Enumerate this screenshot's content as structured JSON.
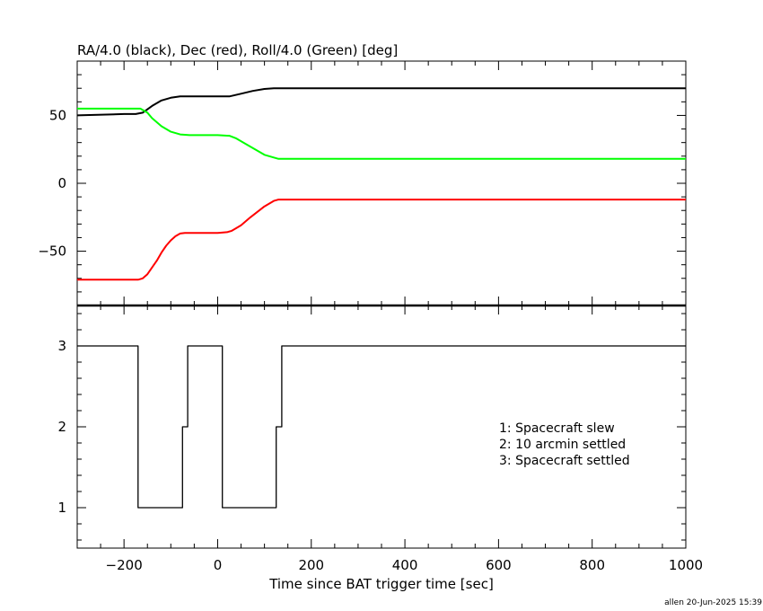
{
  "chart_data": [
    {
      "type": "line",
      "title": "RA/4.0 (black), Dec (red), Roll/4.0 (Green) [deg]",
      "xlim": [
        -300,
        1000
      ],
      "ylim": [
        -90,
        90
      ],
      "y_ticks": [
        50,
        0,
        -50
      ],
      "y_tick_labels": [
        "50",
        "0",
        "−50"
      ],
      "series": [
        {
          "color": "#000000",
          "x": [
            -300,
            -200,
            -175,
            -160,
            -140,
            -120,
            -100,
            -80,
            -60,
            0,
            25,
            50,
            75,
            100,
            120,
            200,
            400,
            600,
            800,
            1000
          ],
          "y": [
            50,
            51,
            51,
            52,
            57,
            61,
            63,
            64,
            64,
            64,
            64,
            66,
            68,
            69.5,
            70,
            70,
            70,
            70,
            70,
            70
          ]
        },
        {
          "color": "#ff0000",
          "x": [
            -300,
            -200,
            -170,
            -160,
            -150,
            -140,
            -130,
            -120,
            -110,
            -100,
            -90,
            -80,
            -70,
            -60,
            0,
            20,
            30,
            50,
            70,
            100,
            120,
            130,
            200,
            400,
            600,
            800,
            1000
          ],
          "y": [
            -71,
            -71,
            -71,
            -70,
            -67,
            -62,
            -57,
            -51,
            -46,
            -42,
            -39,
            -37,
            -36.5,
            -36.5,
            -36.5,
            -36,
            -35,
            -31,
            -25,
            -17,
            -13,
            -12,
            -12,
            -12,
            -12,
            -12,
            -12
          ]
        },
        {
          "color": "#00ff00",
          "x": [
            -300,
            -200,
            -165,
            -150,
            -140,
            -120,
            -100,
            -80,
            -60,
            0,
            25,
            40,
            60,
            80,
            100,
            120,
            130,
            200,
            400,
            600,
            800,
            1000
          ],
          "y": [
            55,
            55,
            55,
            52,
            48,
            42,
            38,
            36,
            35.5,
            35.5,
            35,
            33,
            29,
            25,
            21,
            19,
            18,
            18,
            18,
            18,
            18,
            18
          ]
        }
      ]
    },
    {
      "type": "line",
      "xlabel": "Time since BAT trigger time [sec]",
      "xlim": [
        -300,
        1000
      ],
      "ylim": [
        0.5,
        3.5
      ],
      "x_ticks": [
        -200,
        0,
        200,
        400,
        600,
        800,
        1000
      ],
      "x_tick_labels": [
        "−200",
        "0",
        "200",
        "400",
        "600",
        "800",
        "1000"
      ],
      "y_ticks": [
        3,
        2,
        1
      ],
      "y_tick_labels": [
        "3",
        "2",
        "1"
      ],
      "legend_lines": [
        "1: Spacecraft slew",
        "2: 10 arcmin settled",
        "3: Spacecraft settled"
      ],
      "series": [
        {
          "color": "#000000",
          "step": true,
          "x": [
            -300,
            -170,
            -170,
            -75,
            -75,
            -64,
            -64,
            10,
            10,
            125,
            125,
            137,
            137,
            1000
          ],
          "y": [
            3,
            3,
            1,
            1,
            2,
            2,
            3,
            3,
            1,
            1,
            2,
            2,
            3,
            3
          ]
        }
      ]
    }
  ],
  "footer": "allen 20-Jun-2025 15:39"
}
